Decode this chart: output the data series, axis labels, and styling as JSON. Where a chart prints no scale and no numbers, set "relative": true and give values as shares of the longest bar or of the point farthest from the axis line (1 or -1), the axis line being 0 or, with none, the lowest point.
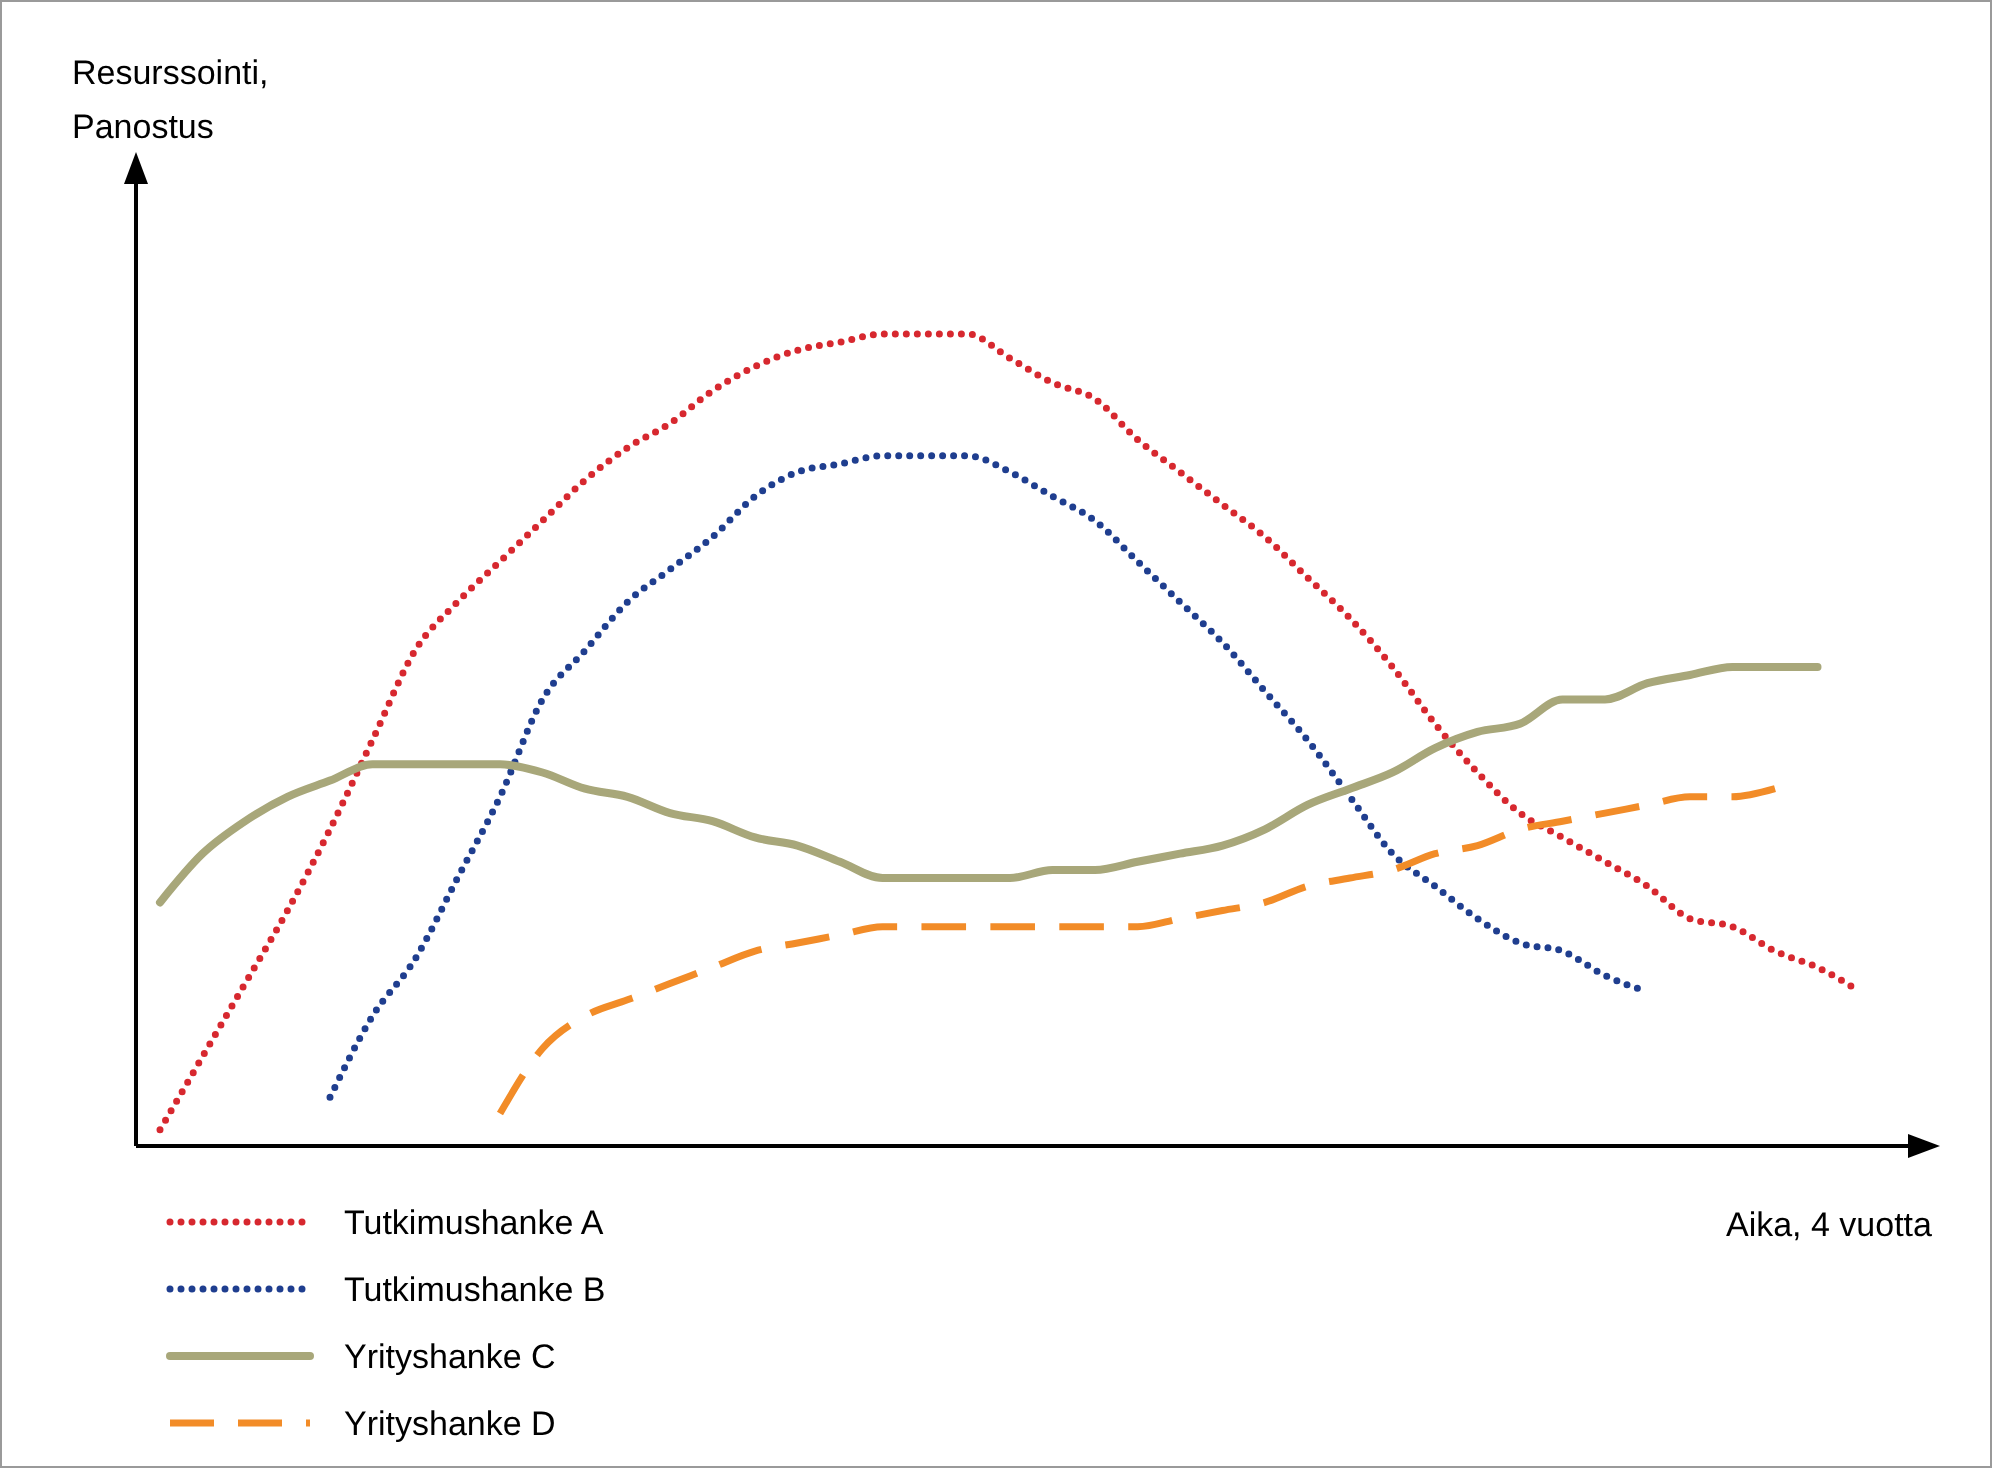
{
  "chart_data": {
    "type": "line",
    "relative": true,
    "xlabel": "Aika, 4 vuotta",
    "annotations": [
      "Resurssointi,\nPanostus"
    ],
    "legend": "bottom left",
    "categories": [
      null,
      null,
      null,
      null,
      null,
      null,
      null,
      null,
      null,
      null,
      null,
      null,
      null,
      null,
      null,
      null,
      null,
      null,
      null,
      null,
      null,
      null,
      null,
      null,
      null,
      null,
      null,
      null,
      null,
      null,
      null,
      null,
      null,
      null,
      null,
      null,
      null,
      null,
      null,
      null,
      null
    ],
    "series": [
      {
        "name": "Tutkimushanke A",
        "color": "#d7282f",
        "line_style": "dotted",
        "values": [
          0.02,
          0.11,
          0.2,
          0.29,
          0.39,
          0.5,
          0.61,
          0.67,
          0.72,
          0.77,
          0.82,
          0.86,
          0.89,
          0.93,
          0.96,
          0.98,
          0.99,
          1,
          1,
          1,
          0.97,
          0.94,
          0.92,
          0.87,
          0.83,
          0.79,
          0.75,
          0.7,
          0.65,
          0.59,
          0.52,
          0.46,
          0.41,
          0.38,
          0.35,
          0.32,
          0.28,
          0.27,
          0.24,
          0.22,
          0.19
        ]
      },
      {
        "name": "Tutkimushanke B",
        "color": "#1f3e8f",
        "line_style": "dotted",
        "values": [
          null,
          null,
          null,
          null,
          0.06,
          0.16,
          0.23,
          0.33,
          0.43,
          0.55,
          0.61,
          0.67,
          0.71,
          0.75,
          0.8,
          0.83,
          0.84,
          0.85,
          0.85,
          0.85,
          0.83,
          0.8,
          0.77,
          0.72,
          0.67,
          0.62,
          0.56,
          0.5,
          0.43,
          0.36,
          0.32,
          0.28,
          0.25,
          0.24,
          0.21,
          0.19,
          null,
          null,
          null,
          null,
          null
        ]
      },
      {
        "name": "Yrityshanke C",
        "color": "#a8a77a",
        "line_style": "solid",
        "values": [
          0.3,
          0.36,
          0.4,
          0.43,
          0.45,
          0.47,
          0.47,
          0.47,
          0.47,
          0.46,
          0.44,
          0.43,
          0.41,
          0.4,
          0.38,
          0.37,
          0.35,
          0.33,
          0.33,
          0.33,
          0.33,
          0.34,
          0.34,
          0.35,
          0.36,
          0.37,
          0.39,
          0.42,
          0.44,
          0.46,
          0.49,
          0.51,
          0.52,
          0.55,
          0.55,
          0.57,
          0.58,
          0.59,
          0.59,
          0.59,
          null
        ]
      },
      {
        "name": "Yrityshanke D",
        "color": "#f28c28",
        "line_style": "dashed",
        "values": [
          null,
          null,
          null,
          null,
          null,
          null,
          null,
          null,
          0.04,
          0.12,
          0.16,
          0.18,
          0.2,
          0.22,
          0.24,
          0.25,
          0.26,
          0.27,
          0.27,
          0.27,
          0.27,
          0.27,
          0.27,
          0.27,
          0.28,
          0.29,
          0.3,
          0.32,
          0.33,
          0.34,
          0.36,
          0.37,
          0.39,
          0.4,
          0.41,
          0.42,
          0.43,
          0.43,
          0.44,
          null,
          null
        ]
      }
    ]
  }
}
